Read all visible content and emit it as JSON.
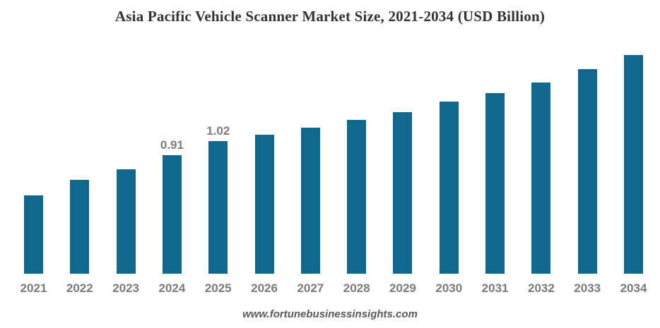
{
  "chart_data": {
    "type": "bar",
    "title": "Asia Pacific Vehicle Scanner Market Size, 2021-2034 (USD Billion)",
    "categories": [
      "2021",
      "2022",
      "2023",
      "2024",
      "2025",
      "2026",
      "2027",
      "2028",
      "2029",
      "2030",
      "2031",
      "2032",
      "2033",
      "2034"
    ],
    "values": [
      0.6,
      0.72,
      0.8,
      0.91,
      1.02,
      1.07,
      1.12,
      1.18,
      1.24,
      1.32,
      1.39,
      1.47,
      1.57,
      1.68
    ],
    "visible_value_labels": {
      "2024": "0.91",
      "2025": "1.02"
    },
    "xlabel": "",
    "ylabel": "",
    "ylim": [
      0,
      2.1
    ],
    "grid": false,
    "legend": false,
    "axes_lines": false,
    "bar_color": "#10688c",
    "value_label_color": "#7c7c7c",
    "axis_label_color": "#7a7a7a",
    "title_color": "#343434"
  },
  "footer": {
    "source": "www.fortunebusinessinsights.com"
  }
}
